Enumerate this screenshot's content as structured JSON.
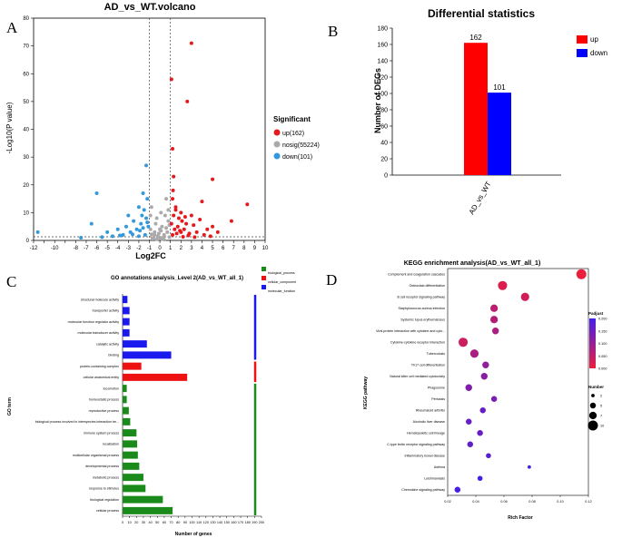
{
  "panels": {
    "a": "A",
    "b": "B",
    "c": "C",
    "d": "D"
  },
  "chart_data": [
    {
      "type": "scatter",
      "title": "AD_vs_WT.volcano",
      "xlabel": "Log2FC",
      "ylabel": "-Log10(P value)",
      "xlim": [
        -12,
        10
      ],
      "ylim": [
        0,
        80
      ],
      "xticks": [
        "-12",
        "-11",
        "-10",
        "-9",
        "-8",
        "-7",
        "-6",
        "-5",
        "-4",
        "-3",
        "-2",
        "-1",
        "0",
        "1",
        "2",
        "3",
        "4",
        "5",
        "6",
        "7",
        "8",
        "9",
        "10"
      ],
      "yticks": [
        "0",
        "10",
        "20",
        "30",
        "40",
        "50",
        "60",
        "70",
        "80"
      ],
      "legend_title": "Significant",
      "legend": [
        "up(162)",
        "nosig(55224)",
        "down(101)"
      ],
      "colors": {
        "up": "#e41a1c",
        "nosig": "#aaaaaa",
        "down": "#3399dd"
      },
      "series": [
        {
          "name": "up(162)",
          "points": [
            [
              3.0,
              71
            ],
            [
              2.6,
              50
            ],
            [
              1.1,
              58
            ],
            [
              1.2,
              33
            ],
            [
              1.3,
              23
            ],
            [
              5.0,
              22
            ],
            [
              8.3,
              13
            ],
            [
              4.0,
              14
            ],
            [
              1.5,
              12
            ],
            [
              2.0,
              10
            ],
            [
              3.0,
              9
            ],
            [
              6.8,
              7
            ],
            [
              5.0,
              5
            ],
            [
              2.5,
              6
            ],
            [
              1.8,
              8
            ],
            [
              1.2,
              15
            ],
            [
              1.4,
              4
            ],
            [
              2.0,
              3
            ],
            [
              2.8,
              2.5
            ],
            [
              3.5,
              3
            ],
            [
              4.2,
              2
            ],
            [
              1.6,
              2.5
            ],
            [
              1.1,
              6
            ],
            [
              2.3,
              4
            ],
            [
              3.2,
              5.5
            ],
            [
              4.5,
              4
            ],
            [
              1.3,
              9
            ],
            [
              2.1,
              7
            ],
            [
              1.7,
              5
            ],
            [
              3.8,
              7.5
            ],
            [
              1.2,
              2
            ],
            [
              2.7,
              1.8
            ],
            [
              5.5,
              3
            ],
            [
              1.5,
              11
            ],
            [
              1.9,
              3.5
            ],
            [
              1.25,
              18
            ],
            [
              2.4,
              8.5
            ],
            [
              4.8,
              1.5
            ],
            [
              3.3,
              1.2
            ],
            [
              2.2,
              1.3
            ]
          ]
        },
        {
          "name": "nosig(55224)",
          "points": [
            [
              -0.8,
              12
            ],
            [
              0.6,
              15
            ],
            [
              -0.3,
              8
            ],
            [
              0.2,
              5
            ],
            [
              0.8,
              7
            ],
            [
              -0.5,
              3
            ],
            [
              0.4,
              2
            ],
            [
              -0.9,
              4
            ],
            [
              0.1,
              10
            ],
            [
              0.7,
              3
            ],
            [
              -0.2,
              1.5
            ],
            [
              0.3,
              0.8
            ],
            [
              -0.6,
              1
            ],
            [
              0.9,
              1.2
            ],
            [
              -0.4,
              6
            ],
            [
              0.5,
              9
            ],
            [
              -0.1,
              2.5
            ],
            [
              0.0,
              1
            ],
            [
              0.2,
              0.5
            ],
            [
              -0.7,
              0.6
            ],
            [
              0.6,
              4.5
            ],
            [
              -0.9,
              9
            ],
            [
              0.8,
              11
            ],
            [
              0.1,
              3.5
            ],
            [
              -0.3,
              0.4
            ],
            [
              0.4,
              0.3
            ],
            [
              -0.5,
              2
            ],
            [
              0.9,
              5.5
            ],
            [
              0.0,
              4
            ],
            [
              -0.8,
              2.2
            ]
          ]
        },
        {
          "name": "down(101)",
          "points": [
            [
              -1.3,
              27
            ],
            [
              -1.6,
              17
            ],
            [
              -6.0,
              17
            ],
            [
              -11.6,
              3
            ],
            [
              -1.2,
              15
            ],
            [
              -2.0,
              12
            ],
            [
              -3.0,
              9
            ],
            [
              -4.0,
              4
            ],
            [
              -5.0,
              3
            ],
            [
              -1.5,
              11
            ],
            [
              -2.5,
              7
            ],
            [
              -1.8,
              6
            ],
            [
              -3.5,
              2
            ],
            [
              -6.5,
              6
            ],
            [
              -2.2,
              4
            ],
            [
              -1.3,
              8
            ],
            [
              -1.1,
              5
            ],
            [
              -4.5,
              1.5
            ],
            [
              -2.8,
              3
            ],
            [
              -1.4,
              2
            ],
            [
              -7.5,
              1
            ],
            [
              -3.2,
              5
            ],
            [
              -1.7,
              9
            ],
            [
              -2.0,
              1.5
            ],
            [
              -5.5,
              1.2
            ],
            [
              -1.9,
              3.5
            ],
            [
              -1.2,
              6.5
            ],
            [
              -2.6,
              2.2
            ],
            [
              -3.8,
              1.8
            ],
            [
              -1.6,
              4.5
            ]
          ]
        }
      ]
    },
    {
      "type": "bar",
      "title": "Differential statistics",
      "ylabel": "Number of DEGs",
      "categories": [
        "AD_vs_WT"
      ],
      "ylim": [
        0,
        180
      ],
      "yticks": [
        "0",
        "20",
        "40",
        "60",
        "80",
        "100",
        "120",
        "140",
        "160",
        "180"
      ],
      "series": [
        {
          "name": "up",
          "values": [
            162
          ],
          "color": "#ff0000"
        },
        {
          "name": "down",
          "values": [
            101
          ],
          "color": "#0000ff"
        }
      ],
      "data_labels": [
        "162",
        "101"
      ],
      "legend": [
        "up",
        "down"
      ]
    },
    {
      "type": "bar",
      "orientation": "horizontal",
      "title": "GO annotations analysis_Level 2(AD_vs_WT_all_1)",
      "xlabel": "Number of genes",
      "ylabel": "GO term",
      "xlim": [
        0,
        200
      ],
      "xticks": [
        "0",
        "10",
        "20",
        "30",
        "40",
        "50",
        "60",
        "70",
        "80",
        "90",
        "100",
        "110",
        "120",
        "130",
        "140",
        "150",
        "160",
        "170",
        "180",
        "190",
        "200"
      ],
      "legend": [
        "biological_process",
        "cellular_component",
        "molecular_function"
      ],
      "colors": {
        "biological_process": "#1a8a1a",
        "cellular_component": "#ee1111",
        "molecular_function": "#1a1aee"
      },
      "categories": [
        "structural molecule activity",
        "transporter activity",
        "molecular function regulator activity",
        "molecular transducer activity",
        "catalytic activity",
        "binding",
        "protein-containing complex",
        "cellular anatomical entity",
        "locomotion",
        "homeostatic process",
        "reproductive process",
        "biological process involved in interspecies interaction be...",
        "immune system process",
        "localization",
        "multicellular organismal process",
        "developmental process",
        "metabolic process",
        "response to stimulus",
        "biological regulation",
        "cellular process"
      ],
      "values": [
        7,
        10,
        10,
        10,
        35,
        70,
        27,
        93,
        6,
        6,
        9,
        11,
        20,
        21,
        22,
        24,
        30,
        33,
        58,
        72
      ],
      "groups": [
        "molecular_function",
        "molecular_function",
        "molecular_function",
        "molecular_function",
        "molecular_function",
        "molecular_function",
        "cellular_component",
        "cellular_component",
        "biological_process",
        "biological_process",
        "biological_process",
        "biological_process",
        "biological_process",
        "biological_process",
        "biological_process",
        "biological_process",
        "biological_process",
        "biological_process",
        "biological_process",
        "biological_process"
      ]
    },
    {
      "type": "scatter",
      "title": "KEGG enrichment analysis(AD_vs_WT_all_1)",
      "xlabel": "Rich Factor",
      "ylabel": "KEGG pathway",
      "xlim": [
        0.02,
        0.12
      ],
      "xticks": [
        "0.02",
        "0.04",
        "0.06",
        "0.08",
        "0.10",
        "0.12"
      ],
      "pathways": [
        "Complement and coagulation cascades",
        "Osteoclast differentiation",
        "B cell receptor signaling pathway",
        "Staphylococcus aureus infection",
        "Systemic lupus erythematosus",
        "Viral protein interaction with cytokine and cyto...",
        "Cytokine-cytokine receptor interaction",
        "Tuberculosis",
        "Th17 cell differentiation",
        "Natural killer cell mediated cytotoxicity",
        "Phagosome",
        "Pertussis",
        "Rheumatoid arthritis",
        "Alcoholic liver disease",
        "Hematopoietic cell lineage",
        "C-type lectin receptor signaling pathway",
        "Inflammatory bowel disease",
        "Asthma",
        "Leishmaniasis",
        "Chemokine signaling pathway"
      ],
      "rich_factor": [
        0.115,
        0.059,
        0.075,
        0.053,
        0.053,
        0.054,
        0.031,
        0.039,
        0.047,
        0.046,
        0.035,
        0.053,
        0.045,
        0.035,
        0.043,
        0.036,
        0.049,
        0.078,
        0.043,
        0.027
      ],
      "number": [
        10,
        9,
        8,
        7,
        7,
        6,
        9,
        8,
        6,
        6,
        6,
        5,
        5,
        5,
        5,
        5,
        4,
        2,
        4,
        5
      ],
      "padjust": [
        0.0,
        0.02,
        0.03,
        0.06,
        0.07,
        0.08,
        0.04,
        0.08,
        0.11,
        0.12,
        0.13,
        0.14,
        0.16,
        0.16,
        0.16,
        0.17,
        0.18,
        0.2,
        0.2,
        0.21
      ],
      "color_legend_title": "Padjust",
      "color_ticks": [
        "0.200",
        "0.150",
        "0.100",
        "0.050",
        "0.000"
      ],
      "size_legend_title": "Number",
      "size_ticks": [
        "2",
        "5",
        "7",
        "10"
      ]
    }
  ]
}
